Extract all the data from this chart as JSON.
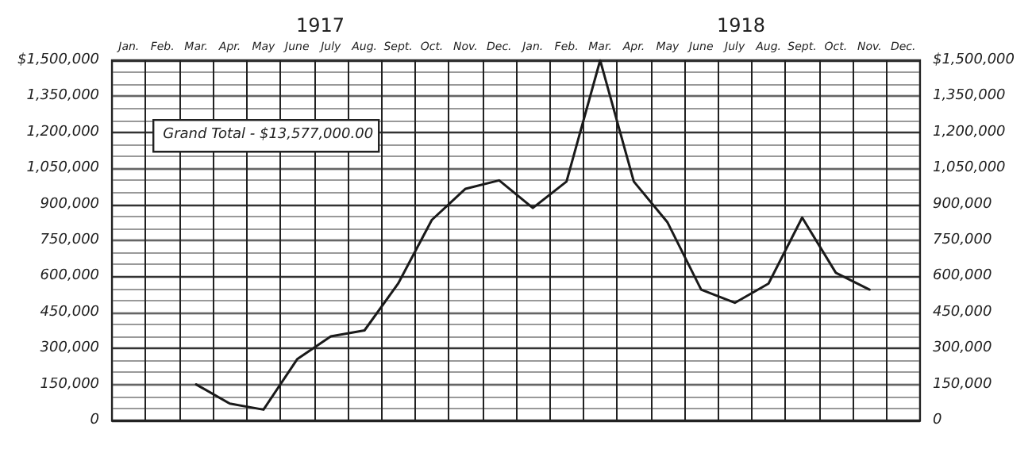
{
  "chart_data": {
    "type": "line",
    "categories": [
      "Jan.",
      "Feb.",
      "Mar.",
      "Apr.",
      "May",
      "June",
      "July",
      "Aug.",
      "Sept.",
      "Oct.",
      "Nov.",
      "Dec.",
      "Jan.",
      "Feb.",
      "Mar.",
      "Apr.",
      "May",
      "June",
      "July",
      "Aug.",
      "Sept.",
      "Oct.",
      "Nov.",
      "Dec."
    ],
    "series": [
      {
        "color": "#1a1a1a",
        "values": [
          null,
          null,
          150000,
          70000,
          45000,
          255000,
          350000,
          375000,
          570000,
          835000,
          965000,
          1000000,
          885000,
          995000,
          1500000,
          995000,
          825000,
          545000,
          490000,
          570000,
          845000,
          615000,
          545000,
          null
        ]
      }
    ],
    "ylim": [
      0,
      1500000
    ],
    "yticks": [
      {
        "value": 0,
        "label": "0"
      },
      {
        "value": 150000,
        "label": "150,000"
      },
      {
        "value": 300000,
        "label": "300,000"
      },
      {
        "value": 450000,
        "label": "450,000"
      },
      {
        "value": 600000,
        "label": "600,000"
      },
      {
        "value": 750000,
        "label": "750,000"
      },
      {
        "value": 900000,
        "label": "900,000"
      },
      {
        "value": 1050000,
        "label": "1,050,000"
      },
      {
        "value": 1200000,
        "label": "1,200,000"
      },
      {
        "value": 1350000,
        "label": "1,350,000"
      },
      {
        "value": 1500000,
        "label": "$1,500,000"
      }
    ],
    "y2lim": [
      0,
      1500000
    ],
    "y2ticks": [
      {
        "value": 0,
        "label": "0"
      },
      {
        "value": 150000,
        "label": "150,000"
      },
      {
        "value": 300000,
        "label": "300,000"
      },
      {
        "value": 450000,
        "label": "450,000"
      },
      {
        "value": 600000,
        "label": "600,000"
      },
      {
        "value": 750000,
        "label": "750,000"
      },
      {
        "value": 900000,
        "label": "900,000"
      },
      {
        "value": 1050000,
        "label": "1,050,000"
      },
      {
        "value": 1200000,
        "label": "1,200,000"
      },
      {
        "value": 1350000,
        "label": "1,350,000"
      },
      {
        "value": 1500000,
        "label": "$1,500,000"
      }
    ],
    "annotations": [
      "1917",
      "1918",
      "Grand Total - $13,577,000.00"
    ],
    "grid": true,
    "marker": "none",
    "line_style": "solid"
  }
}
